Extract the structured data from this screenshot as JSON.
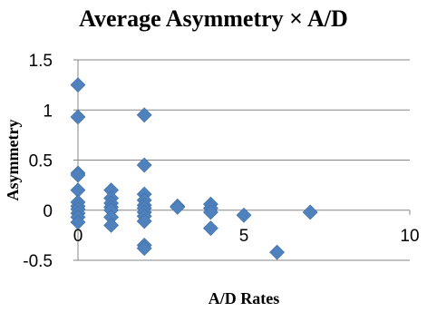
{
  "chart_data": {
    "type": "scatter",
    "title": "Average Asymmetry  × A/D",
    "xlabel": "A/D Rates",
    "ylabel": "Asymmetry",
    "xlim": [
      0,
      10
    ],
    "ylim": [
      -0.5,
      1.5
    ],
    "xticks": [
      0,
      5,
      10
    ],
    "yticks": [
      -0.5,
      0,
      0.5,
      1,
      1.5
    ],
    "xtick_labels": [
      "0",
      "5",
      "10"
    ],
    "ytick_labels": [
      "-0.5",
      "0",
      "0.5",
      "1",
      "1.5"
    ],
    "grid": "horizontal",
    "legend": "none",
    "marker": "diamond",
    "marker_color": "#4F81BD",
    "axis_color": "#868686",
    "points": [
      {
        "x": 0,
        "y": 1.25
      },
      {
        "x": 0,
        "y": 0.93
      },
      {
        "x": 0,
        "y": 0.37
      },
      {
        "x": 0,
        "y": 0.35
      },
      {
        "x": 0,
        "y": 0.2
      },
      {
        "x": 0,
        "y": 0.08
      },
      {
        "x": 0,
        "y": 0.04
      },
      {
        "x": 0,
        "y": 0.01
      },
      {
        "x": 0,
        "y": -0.03
      },
      {
        "x": 0,
        "y": -0.07
      },
      {
        "x": 0,
        "y": -0.12
      },
      {
        "x": 1,
        "y": 0.2
      },
      {
        "x": 1,
        "y": 0.12
      },
      {
        "x": 1,
        "y": 0.07
      },
      {
        "x": 1,
        "y": 0.03
      },
      {
        "x": 1,
        "y": 0.0
      },
      {
        "x": 1,
        "y": -0.07
      },
      {
        "x": 1,
        "y": -0.15
      },
      {
        "x": 2,
        "y": 0.95
      },
      {
        "x": 2,
        "y": 0.45
      },
      {
        "x": 2,
        "y": 0.16
      },
      {
        "x": 2,
        "y": 0.1
      },
      {
        "x": 2,
        "y": 0.05
      },
      {
        "x": 2,
        "y": 0.02
      },
      {
        "x": 2,
        "y": -0.02
      },
      {
        "x": 2,
        "y": -0.06
      },
      {
        "x": 2,
        "y": -0.11
      },
      {
        "x": 2,
        "y": -0.35
      },
      {
        "x": 2,
        "y": -0.38
      },
      {
        "x": 3,
        "y": 0.04
      },
      {
        "x": 3,
        "y": 0.03
      },
      {
        "x": 4,
        "y": 0.06
      },
      {
        "x": 4,
        "y": 0.02
      },
      {
        "x": 4,
        "y": -0.02
      },
      {
        "x": 4,
        "y": -0.18
      },
      {
        "x": 5,
        "y": -0.05
      },
      {
        "x": 6,
        "y": -0.42
      },
      {
        "x": 7,
        "y": -0.02
      }
    ]
  }
}
